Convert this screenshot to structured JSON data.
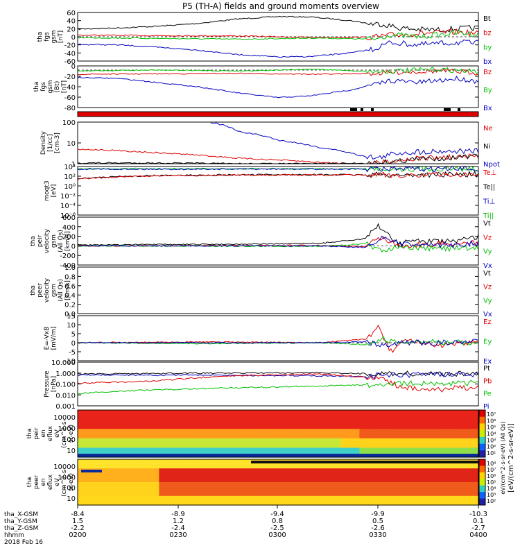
{
  "title": "P5 (TH-A) fields and ground moments overview",
  "chart_data": [
    {
      "id": "p1",
      "type": "line",
      "ylabel": [
        "tha",
        "fgs",
        "gsm",
        "[nT]"
      ],
      "ylim": [
        -60,
        60
      ],
      "yticks": [
        "60",
        "40",
        "20",
        "0",
        "-20",
        "-40",
        "-60"
      ],
      "legend": [
        {
          "name": "Bt",
          "color": "#000000"
        },
        {
          "name": "bz",
          "color": "#e00000"
        },
        {
          "name": "by",
          "color": "#00c000"
        },
        {
          "name": "bx",
          "color": "#0000c0"
        }
      ],
      "series": [
        {
          "name": "Bt",
          "color": "#000000",
          "noise": 0,
          "x": [
            0,
            0.08,
            0.2,
            0.3,
            0.4,
            0.5,
            0.58,
            0.68,
            0.74,
            0.76,
            0.8,
            0.85,
            0.9,
            0.95,
            1
          ],
          "y": [
            19,
            21,
            26,
            33,
            44,
            50,
            49,
            40,
            31,
            32,
            22,
            18,
            17,
            20,
            22
          ]
        },
        {
          "name": "bz",
          "color": "#e00000",
          "noise": 0,
          "x": [
            0,
            0.2,
            0.4,
            0.6,
            0.74,
            0.78,
            0.85,
            0.95,
            1
          ],
          "y": [
            4,
            3,
            2,
            -2,
            -1,
            4,
            8,
            12,
            7
          ]
        },
        {
          "name": "by",
          "color": "#00c000",
          "noise": 0,
          "x": [
            0,
            0.2,
            0.4,
            0.6,
            0.74,
            0.78,
            0.85,
            0.95,
            1
          ],
          "y": [
            -2,
            -4,
            -6,
            -3,
            -6,
            5,
            0,
            10,
            6
          ]
        },
        {
          "name": "bx",
          "color": "#0000c0",
          "noise": 0,
          "x": [
            0,
            0.1,
            0.2,
            0.3,
            0.4,
            0.5,
            0.58,
            0.68,
            0.74,
            0.78,
            0.85,
            0.95,
            1
          ],
          "y": [
            -19,
            -20,
            -26,
            -33,
            -44,
            -50,
            -49,
            -40,
            -30,
            -14,
            -20,
            -14,
            -16
          ]
        }
      ]
    },
    {
      "id": "p2",
      "type": "line",
      "ylabel": [
        "tha",
        "fgs",
        "gsm",
        "(Bt)",
        "[nT]"
      ],
      "ylim": [
        -90,
        10
      ],
      "yticks": [
        "0",
        "-20",
        "-40",
        "-60",
        "-80"
      ],
      "legend": [
        {
          "name": "Bz",
          "color": "#e00000"
        },
        {
          "name": "By",
          "color": "#00c000"
        },
        {
          "name": "Bx",
          "color": "#0000c0"
        }
      ],
      "series": [
        {
          "name": "Bz",
          "color": "#e00000",
          "noise": 0,
          "x": [
            0,
            0.2,
            0.4,
            0.6,
            0.74,
            0.8,
            0.9,
            1
          ],
          "y": [
            -10,
            -9,
            -8,
            -10,
            -8,
            -5,
            -2,
            -6
          ]
        },
        {
          "name": "By",
          "color": "#00c000",
          "noise": 0,
          "x": [
            0,
            0.2,
            0.4,
            0.6,
            0.74,
            0.8,
            0.9,
            1
          ],
          "y": [
            -2,
            0,
            -2,
            2,
            -4,
            -2,
            2,
            -4
          ]
        },
        {
          "name": "Bx",
          "color": "#0000c0",
          "noise": 0,
          "x": [
            0,
            0.1,
            0.2,
            0.3,
            0.4,
            0.5,
            0.58,
            0.68,
            0.74,
            0.78,
            0.85,
            0.95,
            1
          ],
          "y": [
            -18,
            -20,
            -30,
            -40,
            -55,
            -66,
            -62,
            -48,
            -35,
            -25,
            -30,
            -20,
            -28
          ]
        }
      ]
    },
    {
      "id": "p4",
      "type": "line",
      "log": true,
      "ylabel": [
        "Density",
        "[1/cc]",
        "[cm-3]"
      ],
      "ylim": [
        1,
        200
      ],
      "yticks": [
        "100",
        "10",
        "1"
      ],
      "legend": [
        {
          "name": "Ne",
          "color": "#e00000"
        },
        {
          "name": "Ni",
          "color": "#000000"
        },
        {
          "name": "Npot",
          "color": "#0000c0"
        }
      ],
      "series": [
        {
          "name": "Npot",
          "color": "#0000c0",
          "noise": 0,
          "x": [
            0.33,
            0.4,
            0.5,
            0.6,
            0.7,
            0.75,
            0.8,
            0.9,
            1
          ],
          "y": [
            200,
            60,
            20,
            8,
            3,
            2,
            4,
            5,
            5
          ]
        },
        {
          "name": "Ne",
          "color": "#e00000",
          "noise": 0,
          "x": [
            0,
            0.05,
            0.2,
            0.4,
            0.6,
            0.72,
            0.76,
            0.85,
            1
          ],
          "y": [
            6,
            6,
            4,
            2,
            1.2,
            0.9,
            1.2,
            2,
            2.5
          ]
        },
        {
          "name": "Ni",
          "color": "#000000",
          "noise": 0,
          "x": [
            0,
            0.2,
            0.4,
            0.6,
            0.75,
            0.85,
            1
          ],
          "y": [
            1.1,
            1.1,
            1.0,
            1.0,
            1.1,
            1.8,
            2.5
          ]
        }
      ]
    },
    {
      "id": "p5",
      "type": "line",
      "log": true,
      "ylabel": [
        "moqt3",
        "[eV]"
      ],
      "ylim": [
        0.001,
        20000
      ],
      "yticks": [
        "10⁴",
        "10²",
        "10⁰",
        "10⁻²",
        "10⁻⁴",
        "10⁻⁶"
      ],
      "legend": [
        {
          "name": "Te⊥",
          "color": "#e00000"
        },
        {
          "name": "Te||",
          "color": "#000000"
        },
        {
          "name": "Ti⊥",
          "color": "#0000c0"
        },
        {
          "name": "Ti||",
          "color": "#00c000"
        }
      ],
      "series": [
        {
          "name": "Ti||",
          "color": "#00c000",
          "noise": 0,
          "x": [
            0,
            1
          ],
          "y": [
            9000,
            9000
          ]
        },
        {
          "name": "Ti⊥",
          "color": "#0000c0",
          "noise": 0,
          "x": [
            0,
            1
          ],
          "y": [
            8000,
            8000
          ]
        },
        {
          "name": "Te||",
          "color": "#000000",
          "noise": 0,
          "x": [
            0,
            0.2,
            0.5,
            0.8,
            1
          ],
          "y": [
            300,
            900,
            1200,
            1100,
            1400
          ]
        },
        {
          "name": "Te⊥",
          "color": "#e00000",
          "noise": 0,
          "x": [
            0,
            0.2,
            0.5,
            0.8,
            1
          ],
          "y": [
            250,
            800,
            1100,
            1000,
            1300
          ]
        }
      ]
    },
    {
      "id": "p6",
      "type": "line",
      "ylabel": [
        "tha",
        "peir",
        "velocity",
        "gsm",
        "(All Qs)",
        "[km/s]"
      ],
      "ylim": [
        -400,
        600
      ],
      "yticks": [
        "600",
        "400",
        "200",
        "0",
        "-200",
        "-400"
      ],
      "legend": [
        {
          "name": "Vt",
          "color": "#000000"
        },
        {
          "name": "Vz",
          "color": "#e00000"
        },
        {
          "name": "Vy",
          "color": "#00c000"
        },
        {
          "name": "Vx",
          "color": "#0000c0"
        }
      ],
      "series": [
        {
          "name": "Vt",
          "color": "#000000",
          "noise": 0,
          "x": [
            0,
            0.3,
            0.6,
            0.72,
            0.75,
            0.78,
            0.8,
            0.84,
            0.9,
            0.95,
            1
          ],
          "y": [
            20,
            30,
            50,
            150,
            430,
            200,
            40,
            120,
            80,
            100,
            180
          ]
        },
        {
          "name": "Vz",
          "color": "#e00000",
          "noise": 0,
          "x": [
            0,
            0.6,
            0.72,
            0.76,
            0.8,
            0.9,
            1
          ],
          "y": [
            0,
            10,
            -20,
            200,
            0,
            40,
            60
          ]
        },
        {
          "name": "Vy",
          "color": "#00c000",
          "noise": 0,
          "x": [
            0,
            0.6,
            0.72,
            0.76,
            0.8,
            0.9,
            1
          ],
          "y": [
            0,
            -10,
            40,
            -100,
            0,
            -60,
            -50
          ]
        },
        {
          "name": "Vx",
          "color": "#0000c0",
          "noise": 0,
          "x": [
            0,
            0.6,
            0.72,
            0.76,
            0.8,
            0.9,
            1
          ],
          "y": [
            0,
            0,
            -30,
            150,
            40,
            0,
            60
          ]
        }
      ]
    },
    {
      "id": "p7",
      "type": "line",
      "ylabel": [
        "tha",
        "peer",
        "velocity",
        "gsm",
        "(All Qs)",
        "[km/s]"
      ],
      "ylim": [
        0,
        1
      ],
      "yticks": [
        "1.0",
        "0.8",
        "0.6",
        "0.4",
        "0.2",
        "0.0"
      ],
      "legend": [
        {
          "name": "Vt",
          "color": "#000000"
        },
        {
          "name": "Vz",
          "color": "#e00000"
        },
        {
          "name": "Vy",
          "color": "#00c000"
        },
        {
          "name": "Vx",
          "color": "#0000c0"
        }
      ],
      "series": []
    },
    {
      "id": "p8",
      "type": "line",
      "ylabel": [
        "E=-VxB",
        "[mV/m]"
      ],
      "ylim": [
        -10,
        15
      ],
      "yticks": [
        "15",
        "10",
        "5",
        "0",
        "-5",
        "-10"
      ],
      "legend": [
        {
          "name": "Ez",
          "color": "#e00000"
        },
        {
          "name": "Ey",
          "color": "#00c000"
        },
        {
          "name": "Ex",
          "color": "#0000c0"
        }
      ],
      "series": [
        {
          "name": "Ez",
          "color": "#e00000",
          "noise": 0,
          "x": [
            0,
            0.3,
            0.6,
            0.72,
            0.75,
            0.78,
            0.82,
            0.9,
            1
          ],
          "y": [
            0,
            0.5,
            0,
            2,
            9,
            -5,
            1,
            -2,
            1
          ]
        },
        {
          "name": "Ey",
          "color": "#00c000",
          "noise": 0,
          "x": [
            0,
            0.3,
            0.6,
            0.72,
            0.76,
            0.8,
            0.9,
            1
          ],
          "y": [
            0,
            -0.5,
            0,
            -1,
            2,
            0,
            0.5,
            0
          ]
        },
        {
          "name": "Ex",
          "color": "#0000c0",
          "noise": 0,
          "x": [
            0,
            0.3,
            0.6,
            0.72,
            0.76,
            0.8,
            0.9,
            1
          ],
          "y": [
            0,
            0,
            0,
            0.5,
            -2,
            0,
            0,
            1
          ]
        }
      ]
    },
    {
      "id": "p9",
      "type": "line",
      "log": true,
      "ylabel": [
        "Pressure",
        "[nPa]"
      ],
      "ylim": [
        0.003,
        10
      ],
      "yticks": [
        "10.000",
        "1.000",
        "0.100",
        "0.010",
        "0.001"
      ],
      "legend": [
        {
          "name": "Pt",
          "color": "#000000"
        },
        {
          "name": "Pb",
          "color": "#e00000"
        },
        {
          "name": "Pe",
          "color": "#00c000"
        },
        {
          "name": "Pi",
          "color": "#0000c0"
        }
      ],
      "series": [
        {
          "name": "Pt",
          "color": "#000000",
          "noise": 0,
          "x": [
            0,
            0.3,
            0.6,
            0.75,
            0.8,
            1
          ],
          "y": [
            1.1,
            1.3,
            1.4,
            1.1,
            1.2,
            1.1
          ]
        },
        {
          "name": "Pi",
          "color": "#0000c0",
          "noise": 0,
          "x": [
            0,
            0.3,
            0.6,
            0.72,
            0.78,
            0.9,
            1
          ],
          "y": [
            0.9,
            0.9,
            0.8,
            0.7,
            0.9,
            1.0,
            1.0
          ]
        },
        {
          "name": "Pb",
          "color": "#e00000",
          "noise": 0,
          "x": [
            0,
            0.2,
            0.4,
            0.6,
            0.72,
            0.76,
            0.8,
            0.9,
            1
          ],
          "y": [
            0.2,
            0.3,
            0.8,
            1.1,
            0.6,
            0.4,
            0.1,
            0.06,
            0.1
          ]
        },
        {
          "name": "Pe",
          "color": "#00c000",
          "noise": 0,
          "x": [
            0,
            0.2,
            0.5,
            0.75,
            0.8,
            1
          ],
          "y": [
            0.03,
            0.06,
            0.1,
            0.15,
            0.2,
            0.2
          ]
        }
      ]
    },
    {
      "id": "p10",
      "type": "heatmap",
      "ylabel": [
        "tha",
        "peir",
        "en",
        "eflux",
        "eV",
        "(cm^2-s-",
        "sr-eV)"
      ],
      "yticks": [
        "10000",
        "1000",
        "100",
        "10"
      ]
    },
    {
      "id": "p11",
      "type": "heatmap",
      "ylabel": [
        "tha",
        "peer",
        "en",
        "eflux",
        "eV",
        "(cm^2-s-",
        "sr-eV)"
      ],
      "yticks": [
        "10000",
        "1000",
        "100",
        "10"
      ]
    }
  ],
  "panel3_label": "",
  "colorbar": {
    "label": "[eV/(cm^2-s-sr-eV)]",
    "label2": "eV/(cm^2-s-sr-eV) (All Qs)",
    "ticks1": [
      "10⁷",
      "10⁶",
      "10⁵",
      "10⁴",
      "10³",
      "10²",
      "10¹"
    ],
    "ticks2": [
      "10⁸",
      "10⁷",
      "10⁶",
      "10⁵",
      "10⁴",
      "10³",
      "10²"
    ]
  },
  "xaxis": {
    "row_labels": [
      "tha_X-GSM",
      "tha_Y-GSM",
      "tha_Z-GSM",
      "hhmm",
      "2018 Feb 16"
    ],
    "ticks": [
      {
        "x": "-8.4",
        "y": "1.5",
        "z": "-2.2",
        "t": "0200"
      },
      {
        "x": "-8.9",
        "y": "1.2",
        "z": "-2.4",
        "t": "0230"
      },
      {
        "x": "-9.4",
        "y": "0.8",
        "z": "-2.5",
        "t": "0300"
      },
      {
        "x": "-9.9",
        "y": "0.5",
        "z": "-2.6",
        "t": "0330"
      },
      {
        "x": "-10.3",
        "y": "0.1",
        "z": "-2.7",
        "t": "0400"
      }
    ]
  }
}
